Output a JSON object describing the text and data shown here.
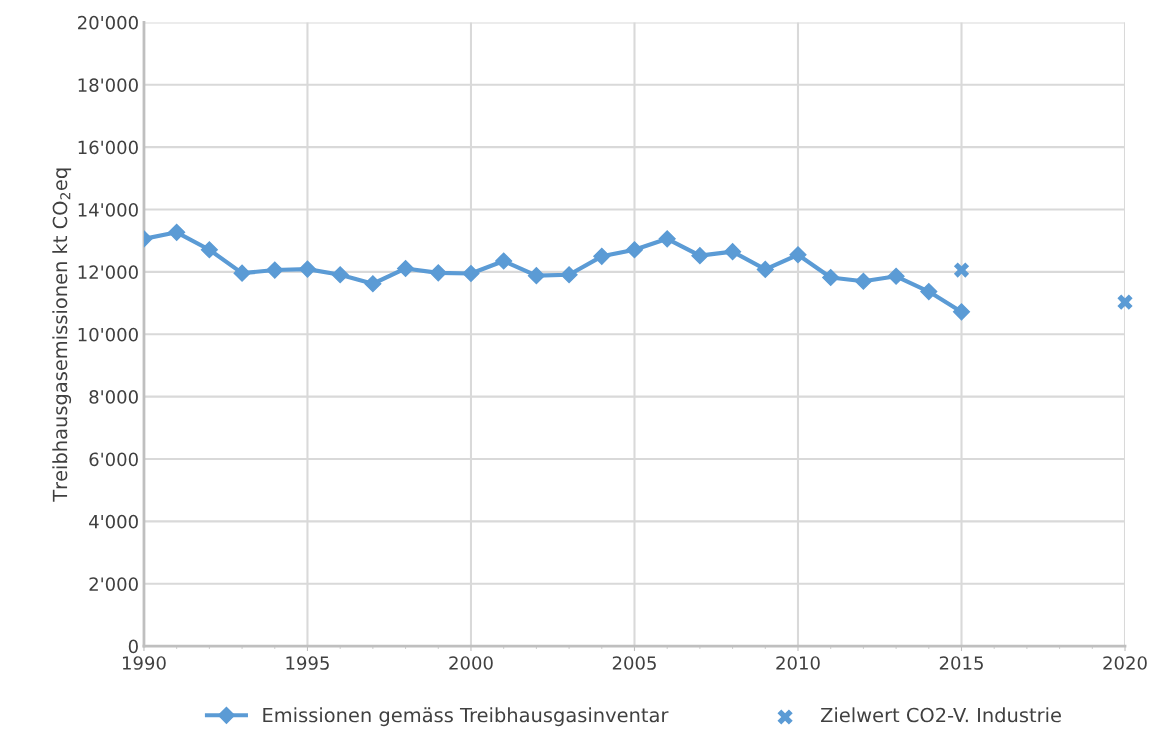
{
  "chart_data": {
    "type": "line",
    "ylabel": "Treibhausgasemissionen kt CO$_{2}$eq",
    "xlim": [
      1990,
      2020
    ],
    "xticks": [
      1990,
      1995,
      2000,
      2005,
      2010,
      2015,
      2020
    ],
    "ylim": [
      0,
      20000
    ],
    "yticks": [
      {
        "value": 0,
        "label": "0"
      },
      {
        "value": 2000,
        "label": "2'000"
      },
      {
        "value": 4000,
        "label": "4'000"
      },
      {
        "value": 6000,
        "label": "6'000"
      },
      {
        "value": 8000,
        "label": "8'000"
      },
      {
        "value": 10000,
        "label": "10'000"
      },
      {
        "value": 12000,
        "label": "12'000"
      },
      {
        "value": 14000,
        "label": "14'000"
      },
      {
        "value": 16000,
        "label": "16'000"
      },
      {
        "value": 18000,
        "label": "18'000"
      },
      {
        "value": 20000,
        "label": "20'000"
      }
    ],
    "grid": true,
    "legend": "bottom",
    "series": [
      {
        "name": "Emissionen gemäss Treibhausgasinventar",
        "marker": "diamond",
        "color": "#5b9bd5",
        "x": [
          1990,
          1991,
          1992,
          1993,
          1994,
          1995,
          1996,
          1997,
          1998,
          1999,
          2000,
          2001,
          2002,
          2003,
          2004,
          2005,
          2006,
          2007,
          2008,
          2009,
          2010,
          2011,
          2012,
          2013,
          2014,
          2015
        ],
        "values": [
          13060,
          13270,
          12710,
          11960,
          12060,
          12090,
          11910,
          11620,
          12110,
          11970,
          11950,
          12350,
          11880,
          11910,
          12500,
          12710,
          13060,
          12520,
          12650,
          12080,
          12550,
          11820,
          11700,
          11860,
          11370,
          10720
        ]
      },
      {
        "name": "Zielwert CO2-V. Industrie",
        "type": "scatter",
        "marker": "cross",
        "color": "#5b9bd5",
        "x": [
          2015,
          2020
        ],
        "values": [
          12060,
          11030
        ]
      }
    ]
  }
}
